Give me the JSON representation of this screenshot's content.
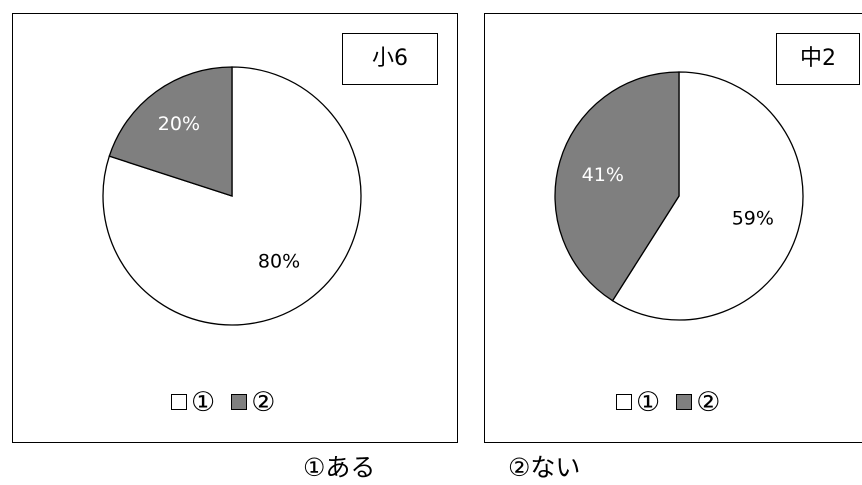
{
  "chart_data": [
    {
      "type": "pie",
      "title": "小6",
      "categories": [
        "①",
        "②"
      ],
      "values": [
        80,
        20
      ],
      "labels": [
        "80%",
        "20%"
      ],
      "colors": [
        "#ffffff",
        "#7f7f7f"
      ],
      "legend": "bottom"
    },
    {
      "type": "pie",
      "title": "中2",
      "categories": [
        "①",
        "②"
      ],
      "values": [
        59,
        41
      ],
      "labels": [
        "59%",
        "41%"
      ],
      "colors": [
        "#ffffff",
        "#7f7f7f"
      ],
      "legend": "bottom"
    }
  ],
  "footnotes": [
    "①ある",
    "②ない"
  ]
}
